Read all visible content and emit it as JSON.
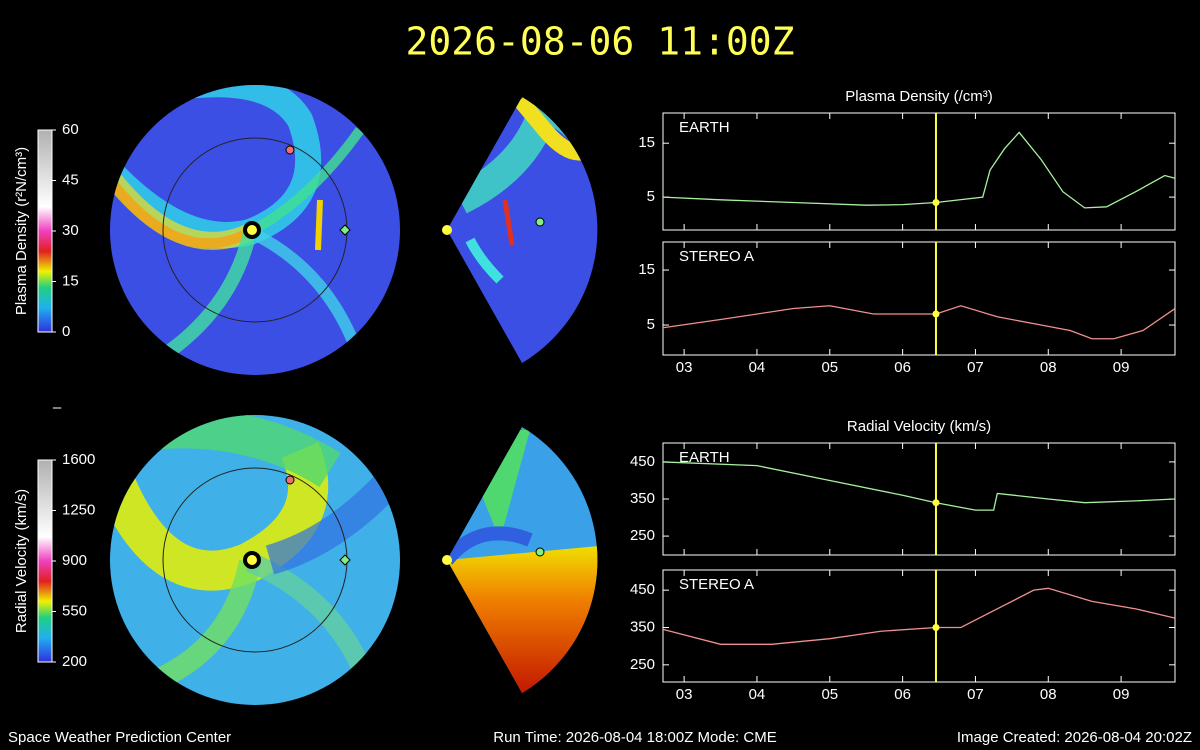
{
  "title": "2026-08-06 11:00Z",
  "cursor": 6.458,
  "footer": {
    "left": "Space Weather Prediction Center",
    "center": "Run Time: 2026-08-04 18:00Z  Mode: CME",
    "right": "Image Created: 2026-08-04 20:02Z"
  },
  "colorbars": [
    {
      "label": "Plasma Density (r²N/cm³)",
      "lim": [
        0,
        60
      ],
      "ticks": [
        0,
        15,
        30,
        45,
        60
      ]
    },
    {
      "label": "Radial Velocity (km/s)",
      "lim": [
        200,
        1600
      ],
      "ticks": [
        200,
        550,
        900,
        1250,
        1600
      ]
    }
  ],
  "chart_data": [
    {
      "type": "line",
      "title": "Plasma Density (/cm³)",
      "x": [
        2.71,
        3.5,
        4.5,
        5.5,
        6.0,
        6.458,
        7.1,
        7.2,
        7.4,
        7.6,
        7.9,
        8.2,
        8.5,
        8.8,
        9.2,
        9.6,
        9.74
      ],
      "series": [
        {
          "name": "EARTH",
          "color": "#a8f0a0",
          "values": [
            5,
            4.5,
            4,
            3.5,
            3.6,
            4,
            5,
            10,
            14,
            17,
            12,
            6,
            3,
            3.2,
            6,
            9,
            8.5
          ]
        }
      ],
      "xlim": [
        2.71,
        9.74
      ],
      "xticks": [
        3,
        4,
        5,
        6,
        7,
        8,
        9
      ],
      "ylim": [
        -1.1,
        20.6
      ],
      "yticks": [
        5,
        15
      ]
    },
    {
      "type": "line",
      "x": [
        2.71,
        3.5,
        4.5,
        5.0,
        5.6,
        6.458,
        6.8,
        7.3,
        7.9,
        8.3,
        8.6,
        8.9,
        9.3,
        9.74
      ],
      "series": [
        {
          "name": "STEREO A",
          "color": "#f09090",
          "values": [
            4.5,
            6,
            8,
            8.5,
            7,
            7,
            8.5,
            6.5,
            5,
            4,
            2.5,
            2.5,
            4,
            8
          ]
        }
      ],
      "xlim": [
        2.71,
        9.74
      ],
      "xticks": [
        {
          "value": 3,
          "label": "03"
        },
        {
          "value": 4,
          "label": "04"
        },
        {
          "value": 5,
          "label": "05"
        },
        {
          "value": 6,
          "label": "06"
        },
        {
          "value": 7,
          "label": "07"
        },
        {
          "value": 8,
          "label": "08"
        },
        {
          "value": 9,
          "label": "09"
        }
      ],
      "ylim": [
        -0.45,
        20.1
      ],
      "yticks": [
        5,
        15
      ]
    },
    {
      "type": "line",
      "title": "Radial Velocity (km/s)",
      "x": [
        2.71,
        4.0,
        5.0,
        6.0,
        6.458,
        7.0,
        7.25,
        7.3,
        8.0,
        8.5,
        9.2,
        9.74
      ],
      "series": [
        {
          "name": "EARTH",
          "color": "#a8f0a0",
          "values": [
            450,
            440,
            400,
            360,
            340,
            320,
            320,
            365,
            350,
            340,
            345,
            350
          ]
        }
      ],
      "xlim": [
        2.71,
        9.74
      ],
      "xticks": [
        3,
        4,
        5,
        6,
        7,
        8,
        9
      ],
      "ylim": [
        199,
        501
      ],
      "yticks": [
        250,
        350,
        450
      ]
    },
    {
      "type": "line",
      "x": [
        2.71,
        3.5,
        4.2,
        5.0,
        5.7,
        6.458,
        6.8,
        7.3,
        7.8,
        8.0,
        8.6,
        9.2,
        9.74
      ],
      "series": [
        {
          "name": "STEREO A",
          "color": "#f09090",
          "values": [
            345,
            305,
            305,
            320,
            340,
            350,
            350,
            400,
            450,
            455,
            420,
            400,
            375
          ]
        }
      ],
      "xlim": [
        2.71,
        9.74
      ],
      "xticks": [
        {
          "value": 3,
          "label": "03"
        },
        {
          "value": 4,
          "label": "04"
        },
        {
          "value": 5,
          "label": "05"
        },
        {
          "value": 6,
          "label": "06"
        },
        {
          "value": 7,
          "label": "07"
        },
        {
          "value": 8,
          "label": "08"
        },
        {
          "value": 9,
          "label": "09"
        }
      ],
      "ylim": [
        204,
        504
      ],
      "yticks": [
        250,
        350,
        450
      ]
    }
  ]
}
